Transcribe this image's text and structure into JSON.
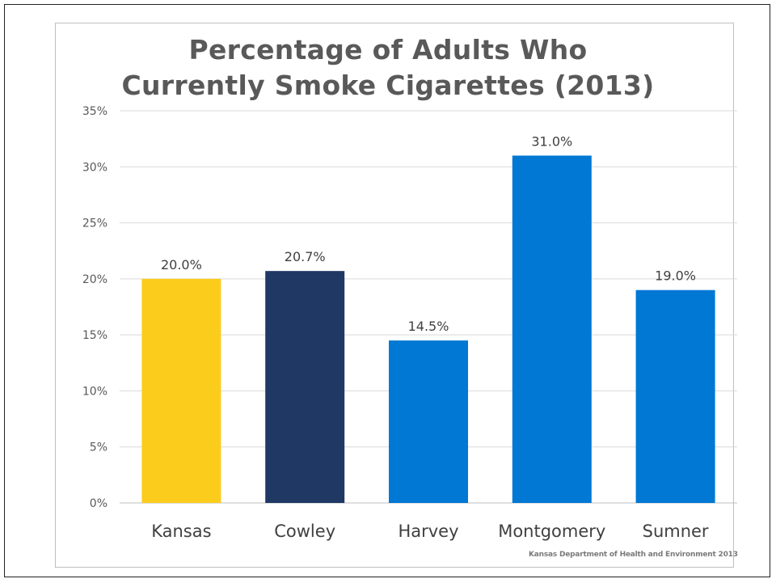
{
  "chart_data": {
    "type": "bar",
    "title": "Percentage of Adults Who Currently Smoke Cigarettes (2013)",
    "categories": [
      "Kansas",
      "Cowley",
      "Harvey",
      "Montgomery",
      "Sumner"
    ],
    "values": [
      20.0,
      20.7,
      14.5,
      31.0,
      19.0
    ],
    "data_labels": [
      "20.0%",
      "20.7%",
      "14.5%",
      "31.0%",
      "19.0%"
    ],
    "bar_colors": [
      "#fccc1c",
      "#1f3864",
      "#0078d4",
      "#0078d4",
      "#0078d4"
    ],
    "ylim": [
      0,
      35
    ],
    "yticks": [
      0,
      5,
      10,
      15,
      20,
      25,
      30,
      35
    ],
    "ytick_labels": [
      "0%",
      "5%",
      "10%",
      "15%",
      "20%",
      "25%",
      "30%",
      "35%"
    ],
    "grid": true,
    "xlabel": "",
    "ylabel": ""
  },
  "source_note": "Kansas Department of Health and Environment 2013"
}
